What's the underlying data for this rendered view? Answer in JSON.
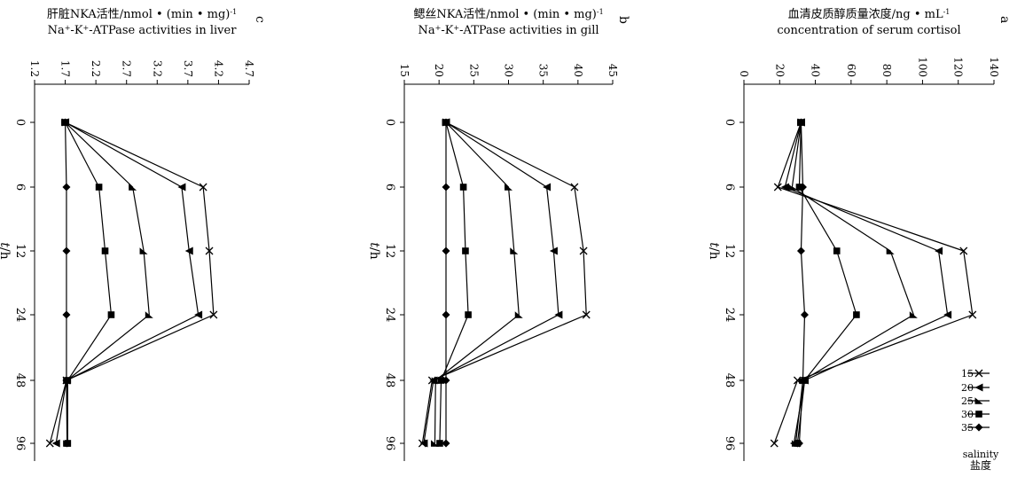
{
  "legend": {
    "title_cn": "盐度",
    "title_en": "salinity",
    "items": [
      "35",
      "30",
      "25",
      "20",
      "15"
    ]
  },
  "x_axis": {
    "label_italic": "t",
    "label_rest": "/h",
    "ticks": [
      0,
      6,
      12,
      24,
      48,
      96
    ],
    "tick_labels": [
      "0",
      "6",
      "12",
      "24",
      "48",
      "96"
    ]
  },
  "chart_data": [
    {
      "panel": "a",
      "type": "line",
      "ylabel_cn": "血清皮质醇质量浓度/ng • mL",
      "ylabel_cn_sup": "-1",
      "ylabel_en": "concentration of serum cortisol",
      "ylim": [
        0,
        140
      ],
      "yticks": [
        "0",
        "20",
        "40",
        "60",
        "80",
        "100",
        "120",
        "140"
      ],
      "x": [
        0,
        6,
        12,
        24,
        48,
        96
      ],
      "series": [
        {
          "name": "35",
          "values": [
            32,
            33,
            32,
            34,
            33,
            31
          ]
        },
        {
          "name": "30",
          "values": [
            32,
            31,
            52,
            63,
            34,
            30
          ]
        },
        {
          "name": "25",
          "values": [
            32,
            27,
            82,
            95,
            33,
            29
          ]
        },
        {
          "name": "20",
          "values": [
            32,
            23,
            109,
            114,
            34,
            28
          ]
        },
        {
          "name": "15",
          "values": [
            32,
            19,
            123,
            128,
            30,
            17
          ]
        }
      ]
    },
    {
      "panel": "b",
      "type": "line",
      "ylabel_cn": "鳃丝NKA活性/nmol • (min • mg)",
      "ylabel_cn_sup": "-1",
      "ylabel_en_pre": "Na",
      "ylabel_en_sup1": "+",
      "ylabel_en_mid": "-K",
      "ylabel_en_sup2": "+",
      "ylabel_en_post": "-ATPase activities in gill",
      "ylim": [
        15,
        45
      ],
      "yticks": [
        "15",
        "20",
        "25",
        "30",
        "35",
        "40",
        "45"
      ],
      "x": [
        0,
        6,
        12,
        24,
        48,
        96
      ],
      "series": [
        {
          "name": "35",
          "values": [
            21,
            21,
            21,
            21,
            21,
            21
          ]
        },
        {
          "name": "30",
          "values": [
            21,
            23.5,
            23.8,
            24.2,
            20.3,
            20.1
          ]
        },
        {
          "name": "25",
          "values": [
            21,
            30,
            30.8,
            31.5,
            19.5,
            19.4
          ]
        },
        {
          "name": "20",
          "values": [
            21,
            35.5,
            36.5,
            37.2,
            19.2,
            17.8
          ]
        },
        {
          "name": "15",
          "values": [
            21,
            39.5,
            40.8,
            41.2,
            19,
            17.6
          ]
        }
      ]
    },
    {
      "panel": "c",
      "type": "line",
      "ylabel_cn": "肝脏NKA活性/nmol • (min • mg)",
      "ylabel_cn_sup": "-1",
      "ylabel_en_pre": "Na",
      "ylabel_en_sup1": "+",
      "ylabel_en_mid": "-K",
      "ylabel_en_sup2": "+",
      "ylabel_en_post": "-ATPase activities in liver",
      "ylim": [
        1.2,
        4.7
      ],
      "yticks": [
        "1.2",
        "1.7",
        "2.2",
        "2.7",
        "3.2",
        "3.7",
        "4.2",
        "4.7"
      ],
      "x": [
        0,
        6,
        12,
        24,
        48,
        96
      ],
      "series": [
        {
          "name": "35",
          "values": [
            1.7,
            1.72,
            1.72,
            1.72,
            1.72,
            1.73
          ]
        },
        {
          "name": "30",
          "values": [
            1.7,
            2.25,
            2.35,
            2.45,
            1.74,
            1.74
          ]
        },
        {
          "name": "25",
          "values": [
            1.7,
            2.8,
            2.98,
            3.07,
            1.73,
            1.73
          ]
        },
        {
          "name": "20",
          "values": [
            1.7,
            3.6,
            3.72,
            3.87,
            1.72,
            1.55
          ]
        },
        {
          "name": "15",
          "values": [
            1.7,
            3.95,
            4.05,
            4.12,
            1.72,
            1.45
          ]
        }
      ]
    }
  ]
}
